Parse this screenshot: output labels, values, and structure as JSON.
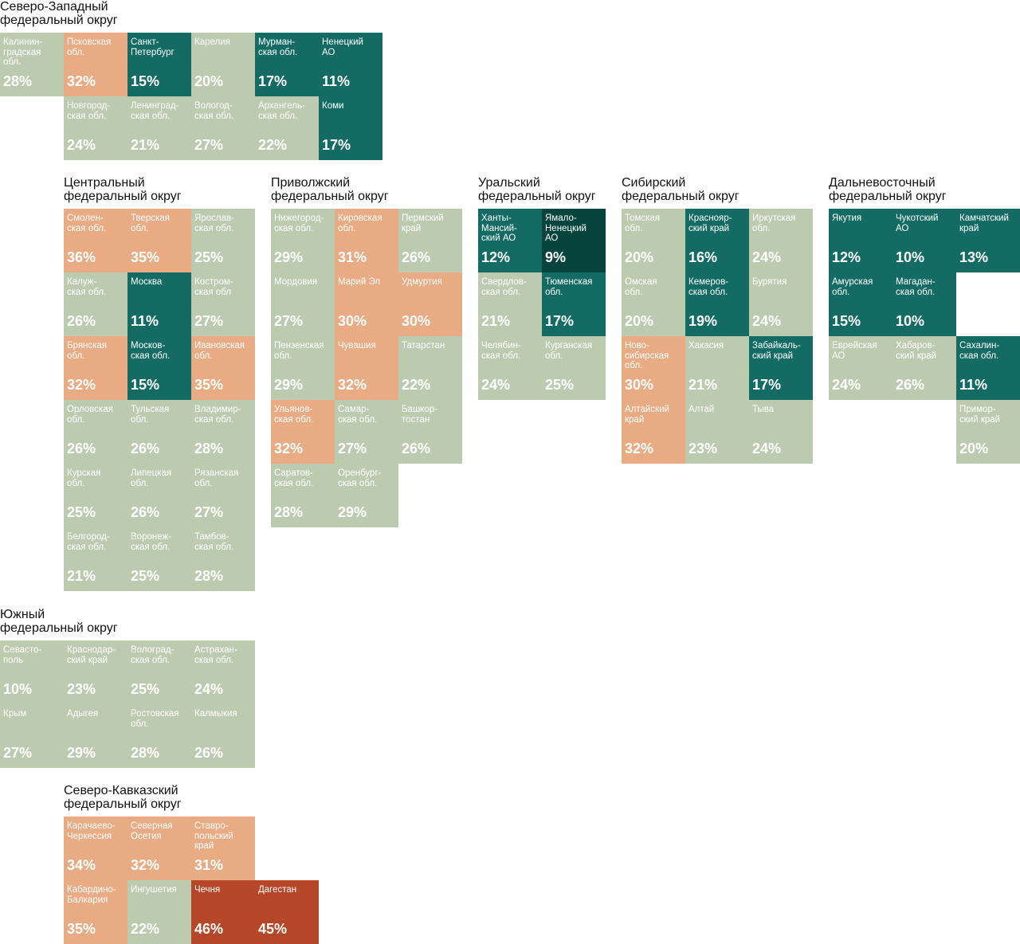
{
  "legend_colors": {
    "light": "#bccbb0",
    "orange": "#e9ab83",
    "teal": "#136b64",
    "dark_teal": "#07443e",
    "red": "#b54728"
  },
  "districts": [
    {
      "id": "nw",
      "title_lines": [
        "Северо-Западный",
        "федеральный округ"
      ],
      "regions": [
        {
          "name": "Калинин-\nградская\nобл.",
          "value": "28%",
          "color": "light"
        },
        {
          "name": "Псковская\nобл.",
          "value": "32%",
          "color": "orange"
        },
        {
          "name": "Санкт-\nПетербург",
          "value": "15%",
          "color": "teal"
        },
        {
          "name": "Карелия",
          "value": "20%",
          "color": "light"
        },
        {
          "name": "Мурман-\nская обл.",
          "value": "17%",
          "color": "teal"
        },
        {
          "name": "Ненецкий\nАО",
          "value": "11%",
          "color": "teal"
        },
        {
          "name": "Новгород-\nская обл.",
          "value": "24%",
          "color": "light"
        },
        {
          "name": "Ленинград-\nская обл.",
          "value": "21%",
          "color": "light"
        },
        {
          "name": "Вологод-\nская обл.",
          "value": "27%",
          "color": "light"
        },
        {
          "name": "Архангель-\nская обл.",
          "value": "22%",
          "color": "light"
        },
        {
          "name": "Коми",
          "value": "17%",
          "color": "teal"
        }
      ]
    },
    {
      "id": "central",
      "title_lines": [
        "Центральный",
        "федеральный округ"
      ],
      "regions": [
        {
          "name": "Смолен-\nская обл.",
          "value": "36%",
          "color": "orange"
        },
        {
          "name": "Тверская\nобл.",
          "value": "35%",
          "color": "orange"
        },
        {
          "name": "Ярослав-\nская обл.",
          "value": "25%",
          "color": "light"
        },
        {
          "name": "Калуж-\nская обл.",
          "value": "26%",
          "color": "light"
        },
        {
          "name": "Москва",
          "value": "11%",
          "color": "teal"
        },
        {
          "name": "Костром-\nская обл",
          "value": "27%",
          "color": "light"
        },
        {
          "name": "Брянская\nобл.",
          "value": "32%",
          "color": "orange"
        },
        {
          "name": "Москов-\nская обл.",
          "value": "15%",
          "color": "teal"
        },
        {
          "name": "Ивановская\nобл.",
          "value": "35%",
          "color": "orange"
        },
        {
          "name": "Орловская\nобл.",
          "value": "26%",
          "color": "light"
        },
        {
          "name": "Тульская\nобл.",
          "value": "26%",
          "color": "light"
        },
        {
          "name": "Владимир-\nская обл.",
          "value": "28%",
          "color": "light"
        },
        {
          "name": "Курская\nобл.",
          "value": "25%",
          "color": "light"
        },
        {
          "name": "Липецкая\nобл.",
          "value": "26%",
          "color": "light"
        },
        {
          "name": "Рязанская\nобл.",
          "value": "27%",
          "color": "light"
        },
        {
          "name": "Белгород-\nская обл.",
          "value": "21%",
          "color": "light"
        },
        {
          "name": "Воронеж-\nская обл.",
          "value": "25%",
          "color": "light"
        },
        {
          "name": "Тамбов-\nская обл.",
          "value": "28%",
          "color": "light"
        }
      ]
    },
    {
      "id": "volga",
      "title_lines": [
        "Приволжский",
        "федеральный округ"
      ],
      "regions": [
        {
          "name": "Нижегород-\nская обл.",
          "value": "29%",
          "color": "light"
        },
        {
          "name": "Кировская\nобл.",
          "value": "31%",
          "color": "orange"
        },
        {
          "name": "Пермский\nкрай",
          "value": "26%",
          "color": "light"
        },
        {
          "name": "Мордовия",
          "value": "27%",
          "color": "light"
        },
        {
          "name": "Марий Эл",
          "value": "30%",
          "color": "orange"
        },
        {
          "name": "Удмуртия",
          "value": "30%",
          "color": "orange"
        },
        {
          "name": "Пензенская\nобл.",
          "value": "29%",
          "color": "light"
        },
        {
          "name": "Чувашия",
          "value": "32%",
          "color": "orange"
        },
        {
          "name": "Татарстан",
          "value": "22%",
          "color": "light"
        },
        {
          "name": "Ульянов-\nская обл.",
          "value": "32%",
          "color": "orange"
        },
        {
          "name": "Самар-\nская обл.",
          "value": "27%",
          "color": "light"
        },
        {
          "name": "Башкор-\nтостан",
          "value": "26%",
          "color": "light"
        },
        {
          "name": "Саратов-\nская обл.",
          "value": "28%",
          "color": "light"
        },
        {
          "name": "Оренбург-\nская обл.",
          "value": "29%",
          "color": "light"
        }
      ]
    },
    {
      "id": "ural",
      "title_lines": [
        "Уральский",
        "федеральный округ"
      ],
      "regions": [
        {
          "name": "Ханты-\nМансий-\nский АО",
          "value": "12%",
          "color": "teal"
        },
        {
          "name": "Ямало-\nНенецкий\nАО",
          "value": "9%",
          "color": "dark_teal"
        },
        {
          "name": "Свердлов-\nская обл.",
          "value": "21%",
          "color": "light"
        },
        {
          "name": "Тюменская\nобл.",
          "value": "17%",
          "color": "teal"
        },
        {
          "name": "Челябин-\nская обл.",
          "value": "24%",
          "color": "light"
        },
        {
          "name": "Курганская\nобл.",
          "value": "25%",
          "color": "light"
        }
      ]
    },
    {
      "id": "siberia",
      "title_lines": [
        "Сибирский",
        "федеральный округ"
      ],
      "regions": [
        {
          "name": "Томская\nобл.",
          "value": "20%",
          "color": "light"
        },
        {
          "name": "Краснояр-\nский край",
          "value": "16%",
          "color": "teal"
        },
        {
          "name": "Иркутская\nобл.",
          "value": "24%",
          "color": "light"
        },
        {
          "name": "Омская\nобл.",
          "value": "20%",
          "color": "light"
        },
        {
          "name": "Кемеров-\nская обл.",
          "value": "19%",
          "color": "teal"
        },
        {
          "name": "Бурятия",
          "value": "24%",
          "color": "light"
        },
        {
          "name": "Ново-\nсибирская\nобл.",
          "value": "30%",
          "color": "orange"
        },
        {
          "name": "Хакасия",
          "value": "21%",
          "color": "light"
        },
        {
          "name": "Забайкаль-\nский край",
          "value": "17%",
          "color": "teal"
        },
        {
          "name": "Алтайский\nкрай",
          "value": "32%",
          "color": "orange"
        },
        {
          "name": "Алтай",
          "value": "23%",
          "color": "light"
        },
        {
          "name": "Тыва",
          "value": "24%",
          "color": "light"
        }
      ]
    },
    {
      "id": "fareast",
      "title_lines": [
        "Дальневосточный",
        "федеральный округ"
      ],
      "regions": [
        {
          "name": "Якутия",
          "value": "12%",
          "color": "teal"
        },
        {
          "name": "Чукотский\nАО",
          "value": "10%",
          "color": "teal"
        },
        {
          "name": "Камчатский\nкрай",
          "value": "13%",
          "color": "teal"
        },
        {
          "name": "Амурская\nобл.",
          "value": "15%",
          "color": "teal"
        },
        {
          "name": "Магадан-\nская обл.",
          "value": "10%",
          "color": "teal"
        },
        {
          "name": "Еврейская\nАО",
          "value": "24%",
          "color": "light"
        },
        {
          "name": "Хабаров-\nский край",
          "value": "26%",
          "color": "light"
        },
        {
          "name": "Сахалин-\nская обл.",
          "value": "11%",
          "color": "teal"
        },
        {
          "name": "Примор-\nский край",
          "value": "20%",
          "color": "light"
        }
      ]
    },
    {
      "id": "south",
      "title_lines": [
        "Южный",
        "федеральный округ"
      ],
      "regions": [
        {
          "name": "Севасто-\nполь",
          "value": "10%",
          "color": "light"
        },
        {
          "name": "Краснодар-\nский край",
          "value": "23%",
          "color": "light"
        },
        {
          "name": "Волоград-\nская обл.",
          "value": "25%",
          "color": "light"
        },
        {
          "name": "Астрахан-\nская обл.",
          "value": "24%",
          "color": "light"
        },
        {
          "name": "Крым",
          "value": "27%",
          "color": "light"
        },
        {
          "name": "Адыгея",
          "value": "29%",
          "color": "light"
        },
        {
          "name": "Ростовская\nобл.",
          "value": "28%",
          "color": "light"
        },
        {
          "name": "Калмыкия",
          "value": "26%",
          "color": "light"
        }
      ]
    },
    {
      "id": "ncaucasus",
      "title_lines": [
        "Северо-Кавказский",
        "федеральный округ"
      ],
      "regions": [
        {
          "name": "Карачаево-\nЧеркессия",
          "value": "34%",
          "color": "orange"
        },
        {
          "name": "Северная\nОсетия",
          "value": "32%",
          "color": "orange"
        },
        {
          "name": "Ставро-\nпольский\nкрай",
          "value": "31%",
          "color": "orange"
        },
        {
          "name": "Кабардино-\nБалкария",
          "value": "35%",
          "color": "orange"
        },
        {
          "name": "Ингушетия",
          "value": "22%",
          "color": "light"
        },
        {
          "name": "Чечня",
          "value": "46%",
          "color": "red"
        },
        {
          "name": "Дагестан",
          "value": "45%",
          "color": "red"
        }
      ]
    }
  ]
}
